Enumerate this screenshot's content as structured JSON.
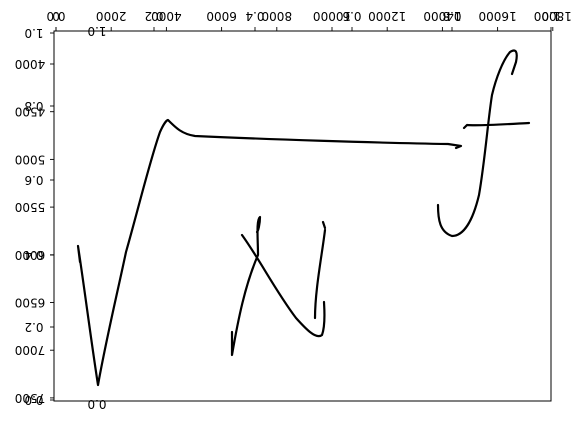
{
  "figure": {
    "description_free": true,
    "rendering": "mirrored overlapping matplotlib axes with handwritten strokes",
    "colors": {
      "ink": "#000000",
      "frame": "#000000",
      "background": "#ffffff"
    }
  },
  "axes_a": {
    "orientation": "mirrored",
    "top_ticks": [
      "0.0",
      "0.2",
      "0.4",
      "0.6",
      "0.8",
      "1.0"
    ],
    "left_ticks": [
      "0.0",
      "0.2",
      "0.4",
      "0.6",
      "0.8",
      "1.0"
    ]
  },
  "axes_b": {
    "orientation": "mirrored",
    "top_ticks": [
      "0",
      "2000",
      "4000",
      "6000",
      "8000",
      "10000",
      "12000",
      "14000",
      "16000",
      "18000"
    ],
    "left_ticks": [
      "4000",
      "4500",
      "5000",
      "5500",
      "6000",
      "6500",
      "7000",
      "7500"
    ]
  },
  "axes_c": {
    "orientation": "upright-partial",
    "top_ticks": [
      "1.0"
    ],
    "left_ticks": [
      "0.0"
    ]
  }
}
